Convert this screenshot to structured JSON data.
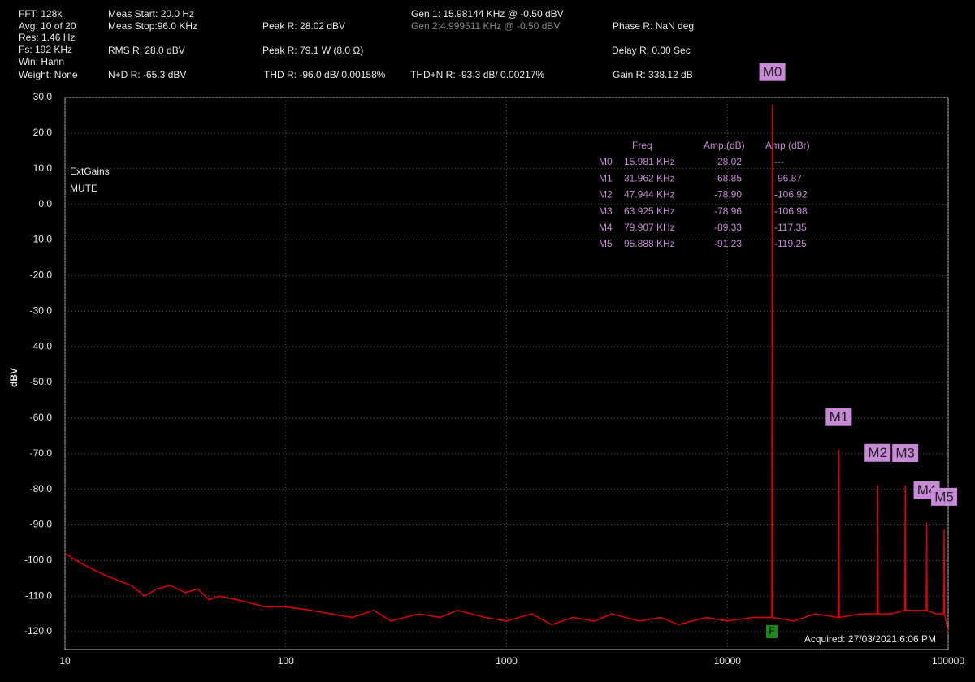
{
  "header": [
    "FFT: 128k",
    "Avg: 10 of 20",
    "Res: 1.46 Hz",
    "Fs: 192 KHz",
    "Win: Hann",
    "Weight: None",
    "Meas Start: 20.0 Hz",
    "Meas Stop:96.0 KHz",
    "RMS R: 28.0 dBV",
    "N+D R: -65.3 dBV",
    "Peak R: 28.02 dBV",
    "Peak R: 79.1 W (8.0 Ω)",
    "THD R: -96.0 dB/ 0.00158%",
    "Gen 1: 15.98144 KHz @ -0.50  dBV",
    "Gen 2:4.999511 KHz @ -0.50  dBV",
    "THD+N R: -93.3 dB/ 0.00217%",
    "Phase R: NaN deg",
    "Delay R: 0.00 Sec",
    "Gain R: 338.12 dB"
  ],
  "chart_data": {
    "type": "line",
    "ylabel": "dBV",
    "log_x": true,
    "grid": true,
    "notes": [
      "ExtGains",
      "MUTE"
    ],
    "acquired": "Acquired: 27/03/2021  6:06 PM",
    "flag": "F",
    "xlim": [
      10,
      100000
    ],
    "xticks": [
      10,
      100,
      1000,
      10000,
      100000
    ],
    "ylim": [
      -125,
      30
    ],
    "yticks": [
      {
        "value": 30,
        "label": "30.0"
      },
      {
        "value": 20,
        "label": "20.0"
      },
      {
        "value": 10,
        "label": "10.0"
      },
      {
        "value": 0,
        "label": "0.0"
      },
      {
        "value": -10,
        "label": "-10.0"
      },
      {
        "value": -20,
        "label": "-20.0"
      },
      {
        "value": -30,
        "label": "-30.0"
      },
      {
        "value": -40,
        "label": "-40.0"
      },
      {
        "value": -50,
        "label": "-50.0"
      },
      {
        "value": -60,
        "label": "-60.0"
      },
      {
        "value": -70,
        "label": "-70.0"
      },
      {
        "value": -80,
        "label": "-80.0"
      },
      {
        "value": -90,
        "label": "-90.0"
      },
      {
        "value": -100,
        "label": "-100.0"
      },
      {
        "value": -110,
        "label": "-110.0"
      },
      {
        "value": -120,
        "label": "-120.0"
      }
    ],
    "series": [
      {
        "color": "#e00000",
        "x": [
          10,
          12,
          15,
          18,
          20,
          23,
          26,
          30,
          35,
          40,
          45,
          50,
          60,
          70,
          80,
          100,
          130,
          160,
          200,
          250,
          300,
          400,
          500,
          600,
          800,
          1000,
          1300,
          1600,
          2000,
          2500,
          3000,
          4000,
          5000,
          6000,
          8000,
          10000,
          13000,
          15900,
          15981,
          16060,
          20000,
          25000,
          31800,
          31962,
          32120,
          40000,
          47700,
          47944,
          48180,
          55000,
          63600,
          63925,
          64240,
          70000,
          79500,
          79907,
          80300,
          88000,
          95400,
          95888,
          96300,
          100000
        ],
        "values": [
          -98,
          -101,
          -104,
          -106,
          -107,
          -110,
          -108,
          -107,
          -109,
          -108,
          -111,
          -110,
          -111,
          -112,
          -113,
          -113,
          -114,
          -115,
          -116,
          -114,
          -117,
          -115,
          -116,
          -114,
          -116,
          -117,
          -115,
          -118,
          -116,
          -117,
          -115,
          -117,
          -116,
          -118,
          -116,
          -117,
          -116,
          -116,
          28.02,
          -116,
          -117,
          -115,
          -116,
          -68.85,
          -116,
          -115,
          -115,
          -78.9,
          -115,
          -115,
          -114,
          -78.96,
          -114,
          -114,
          -114,
          -89.33,
          -114,
          -115,
          -115,
          -91.23,
          -115,
          -120
        ]
      }
    ],
    "marker_table": {
      "columns": [
        "Freq",
        "Amp.(dB)",
        "Amp (dBr)"
      ],
      "rows": [
        {
          "name": "M0",
          "freq": {
            "value": 15981,
            "label": "15.981 KHz"
          },
          "amp": 28.02,
          "dbr": "---"
        },
        {
          "name": "M1",
          "freq": {
            "value": 31962,
            "label": "31.962 KHz"
          },
          "amp": -68.85,
          "dbr": -96.87
        },
        {
          "name": "M2",
          "freq": {
            "value": 47944,
            "label": "47.944 KHz"
          },
          "amp": {
            "value": -78.9,
            "label": "-78.90"
          },
          "dbr": -106.92
        },
        {
          "name": "M3",
          "freq": {
            "value": 63925,
            "label": "63.925 KHz"
          },
          "amp": -78.96,
          "dbr": -106.98
        },
        {
          "name": "M4",
          "freq": {
            "value": 79907,
            "label": "79.907 KHz"
          },
          "amp": -89.33,
          "dbr": -117.35
        },
        {
          "name": "M5",
          "freq": {
            "value": 95888,
            "label": "95.888 KHz"
          },
          "amp": -91.23,
          "dbr": -119.25
        }
      ]
    }
  }
}
